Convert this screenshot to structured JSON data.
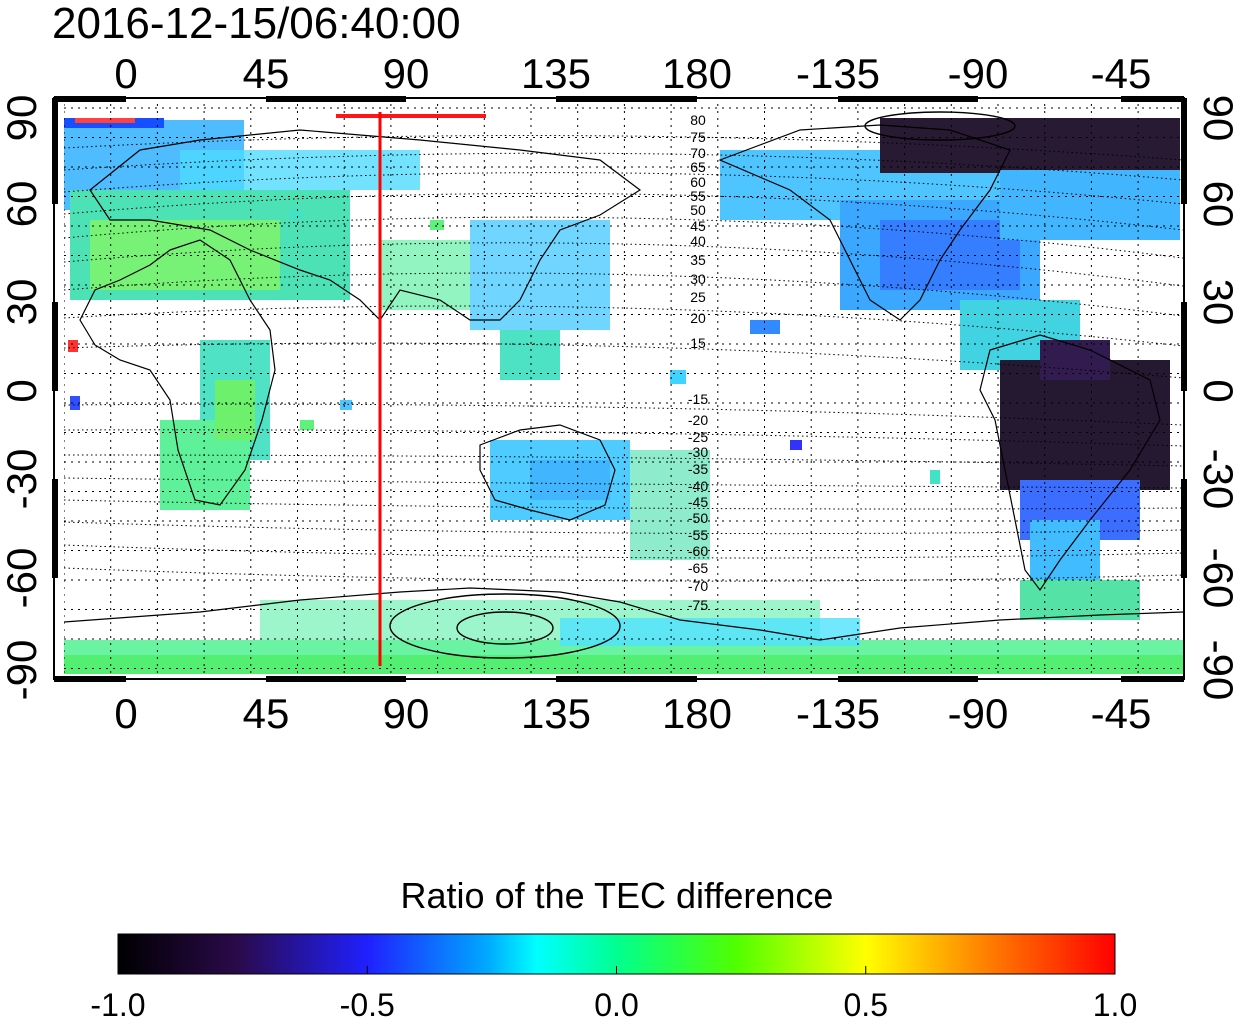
{
  "title": "2016-12-15/06:40:00",
  "map": {
    "top_lon_ticks": [
      "0",
      "45",
      "90",
      "135",
      "180",
      "-135",
      "-90",
      "-45"
    ],
    "bottom_lon_ticks": [
      "0",
      "45",
      "90",
      "135",
      "180",
      "-135",
      "-90",
      "-45"
    ],
    "left_lat_ticks": [
      "90",
      "60",
      "30",
      "0",
      "-30",
      "-60",
      "-90"
    ],
    "right_lat_ticks": [
      "90",
      "60",
      "30",
      "0",
      "-30",
      "-60",
      "-90"
    ],
    "contour_labels_north": [
      "80",
      "75",
      "70",
      "65",
      "60",
      "55",
      "50",
      "45",
      "40",
      "35",
      "30",
      "25",
      "20",
      "15"
    ],
    "contour_labels_south": [
      "-15",
      "-20",
      "-25",
      "-30",
      "-35",
      "-40",
      "-45",
      "-50",
      "-55",
      "-60",
      "-65",
      "-70",
      "-75"
    ],
    "marker_line_color": "#ff0000"
  },
  "colorbar": {
    "title": "Ratio of the TEC difference",
    "tick_labels": [
      "-1.0",
      "-0.5",
      "0.0",
      "0.5",
      "1.0"
    ],
    "colors": [
      "#000000",
      "#3a0a5a",
      "#0000ff",
      "#00bfff",
      "#00ffff",
      "#00ff80",
      "#40ff00",
      "#ffff00",
      "#ff8000",
      "#ff0000"
    ]
  }
}
